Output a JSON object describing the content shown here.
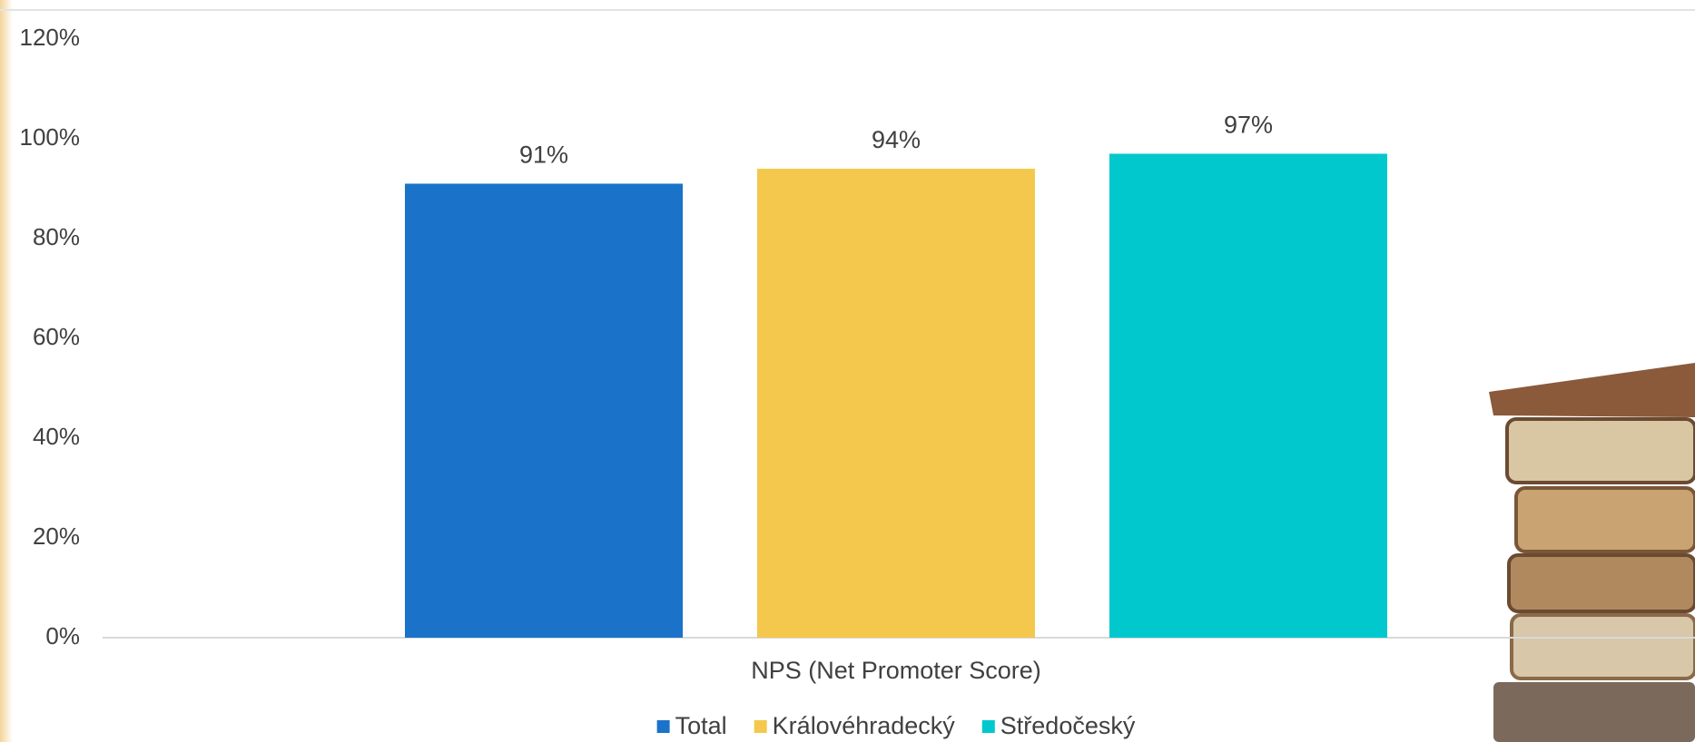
{
  "chart_data": {
    "type": "bar",
    "categories": [
      "NPS (Net Promoter Score)"
    ],
    "series": [
      {
        "name": "Total",
        "color": "#1a73c9",
        "values": [
          91
        ],
        "value_labels": [
          "91%"
        ]
      },
      {
        "name": "Královéhradecký",
        "color": "#f4c84d",
        "values": [
          94
        ],
        "value_labels": [
          "94%"
        ]
      },
      {
        "name": "Středočeský",
        "color": "#00c8cc",
        "values": [
          97
        ],
        "value_labels": [
          "97%"
        ]
      }
    ],
    "ylim": [
      0,
      120
    ],
    "yticks": [
      {
        "value": 0,
        "label": "0%"
      },
      {
        "value": 20,
        "label": "20%"
      },
      {
        "value": 40,
        "label": "40%"
      },
      {
        "value": 60,
        "label": "60%"
      },
      {
        "value": 80,
        "label": "80%"
      },
      {
        "value": 100,
        "label": "100%"
      },
      {
        "value": 120,
        "label": "120%"
      }
    ],
    "legend": "bottom"
  }
}
